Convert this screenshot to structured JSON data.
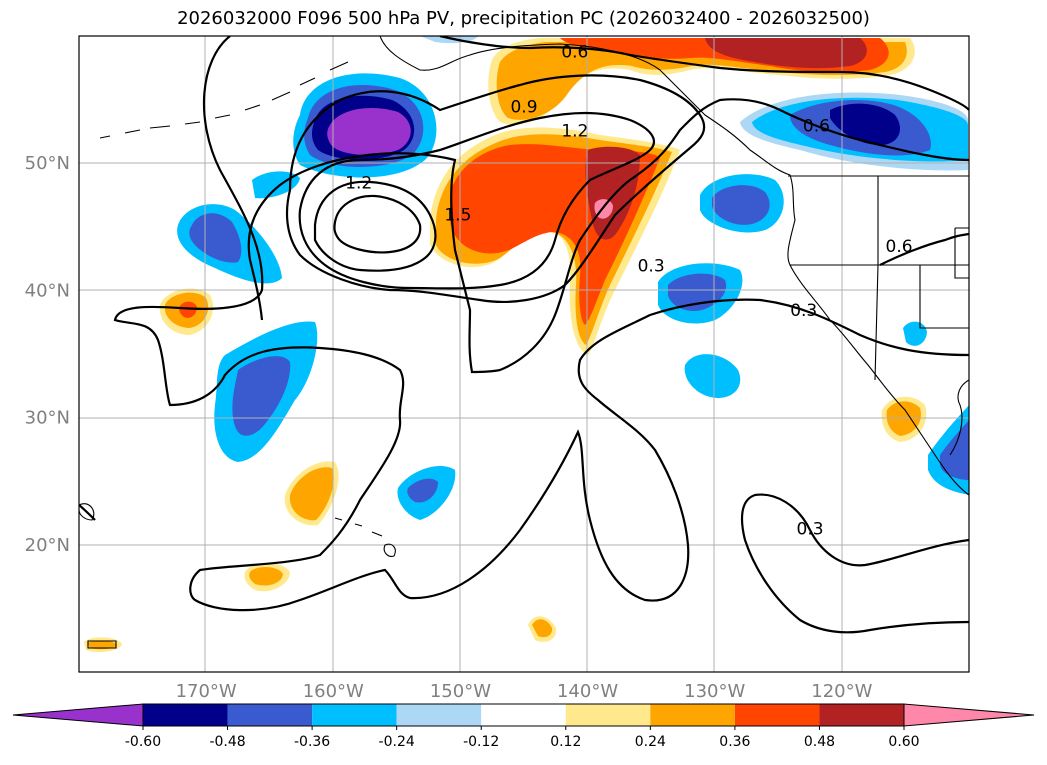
{
  "title": "2026032000 F096 500 hPa PV, precipitation PC (2026032400 - 2026032500)",
  "map": {
    "lon_range": [
      -180,
      -110
    ],
    "lat_range": [
      10,
      60
    ],
    "lon_ticks": [
      {
        "value": -170,
        "label": "170°W"
      },
      {
        "value": -160,
        "label": "160°W"
      },
      {
        "value": -150,
        "label": "150°W"
      },
      {
        "value": -140,
        "label": "140°W"
      },
      {
        "value": -130,
        "label": "130°W"
      },
      {
        "value": -120,
        "label": "120°W"
      }
    ],
    "lat_ticks": [
      {
        "value": 20,
        "label": "20°N"
      },
      {
        "value": 30,
        "label": "30°N"
      },
      {
        "value": 40,
        "label": "40°N"
      },
      {
        "value": 50,
        "label": "50°N"
      }
    ],
    "contour_labels": [
      {
        "text": "0.6",
        "lon": -141,
        "lat": 58.3
      },
      {
        "text": "0.9",
        "lon": -145,
        "lat": 54.0
      },
      {
        "text": "1.2",
        "lon": -141,
        "lat": 52.1
      },
      {
        "text": "0.6",
        "lon": -122,
        "lat": 52.5
      },
      {
        "text": "1.2",
        "lon": -158,
        "lat": 48.0
      },
      {
        "text": "1.5",
        "lon": -150.2,
        "lat": 45.5
      },
      {
        "text": "0.3",
        "lon": -135,
        "lat": 41.5
      },
      {
        "text": "0.6",
        "lon": -115.5,
        "lat": 43.0
      },
      {
        "text": "0.3",
        "lon": -123,
        "lat": 38.0
      },
      {
        "text": "0.3",
        "lon": -122.5,
        "lat": 20.8
      }
    ]
  },
  "colorbar": {
    "levels": [
      "-0.60",
      "-0.48",
      "-0.36",
      "-0.24",
      "-0.12",
      "0.12",
      "0.24",
      "0.36",
      "0.48",
      "0.60"
    ],
    "colors": [
      "#9932cc",
      "#00008b",
      "#3a5bd0",
      "#00bfff",
      "#add8f5",
      "#ffffff",
      "#ffe98c",
      "#ffa500",
      "#ff4500",
      "#b22222",
      "#ff88aa"
    ]
  }
}
